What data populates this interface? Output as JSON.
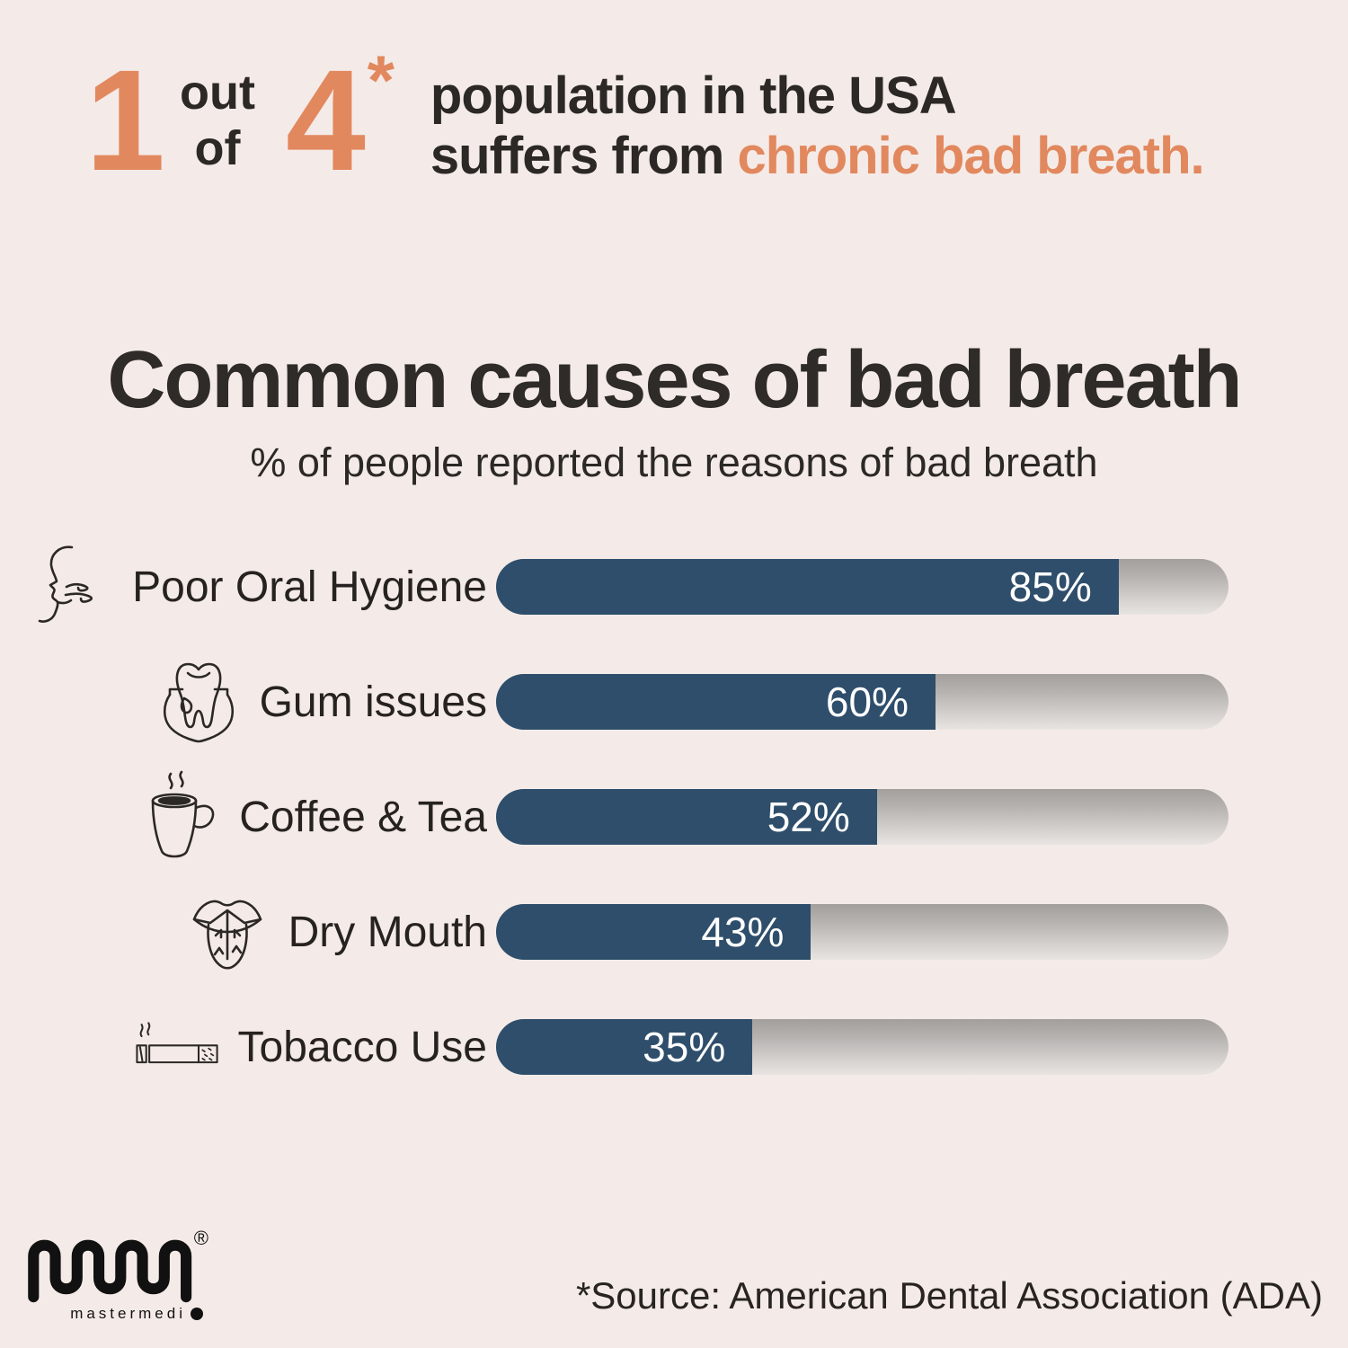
{
  "colors": {
    "background": "#f4ebe8",
    "accent_orange": "#e2885e",
    "bar_blue": "#2e4e6b",
    "bar_track_gray": "#b5b2b0",
    "text_dark": "#2b2826",
    "bar_value_text": "#ffffff"
  },
  "header": {
    "numerator": "1",
    "out": "out",
    "of": "of",
    "denominator": "4",
    "asterisk": "*",
    "line1": "population in the USA",
    "line2_prefix": "suffers from",
    "line2_highlight": "chronic bad breath."
  },
  "chart_data": {
    "type": "bar",
    "orientation": "horizontal",
    "title": "Common causes of bad breath",
    "subtitle": "% of people reported the reasons of bad breath",
    "xlim": [
      0,
      100
    ],
    "grid": false,
    "legend": false,
    "categories": [
      "Poor Oral Hygiene",
      "Gum issues",
      "Coffee & Tea",
      "Dry Mouth",
      "Tobacco Use"
    ],
    "values": [
      85,
      60,
      52,
      43,
      35
    ],
    "value_labels": [
      "85%",
      "60%",
      "52%",
      "43%",
      "35%"
    ],
    "icons": [
      "exhaling-face-icon",
      "tooth-gums-icon",
      "coffee-cup-icon",
      "dry-mouth-tongue-icon",
      "cigarette-icon"
    ]
  },
  "footer": {
    "logo_text": "mastermedi",
    "registered_mark": "®",
    "source": "*Source: American Dental Association (ADA)"
  }
}
